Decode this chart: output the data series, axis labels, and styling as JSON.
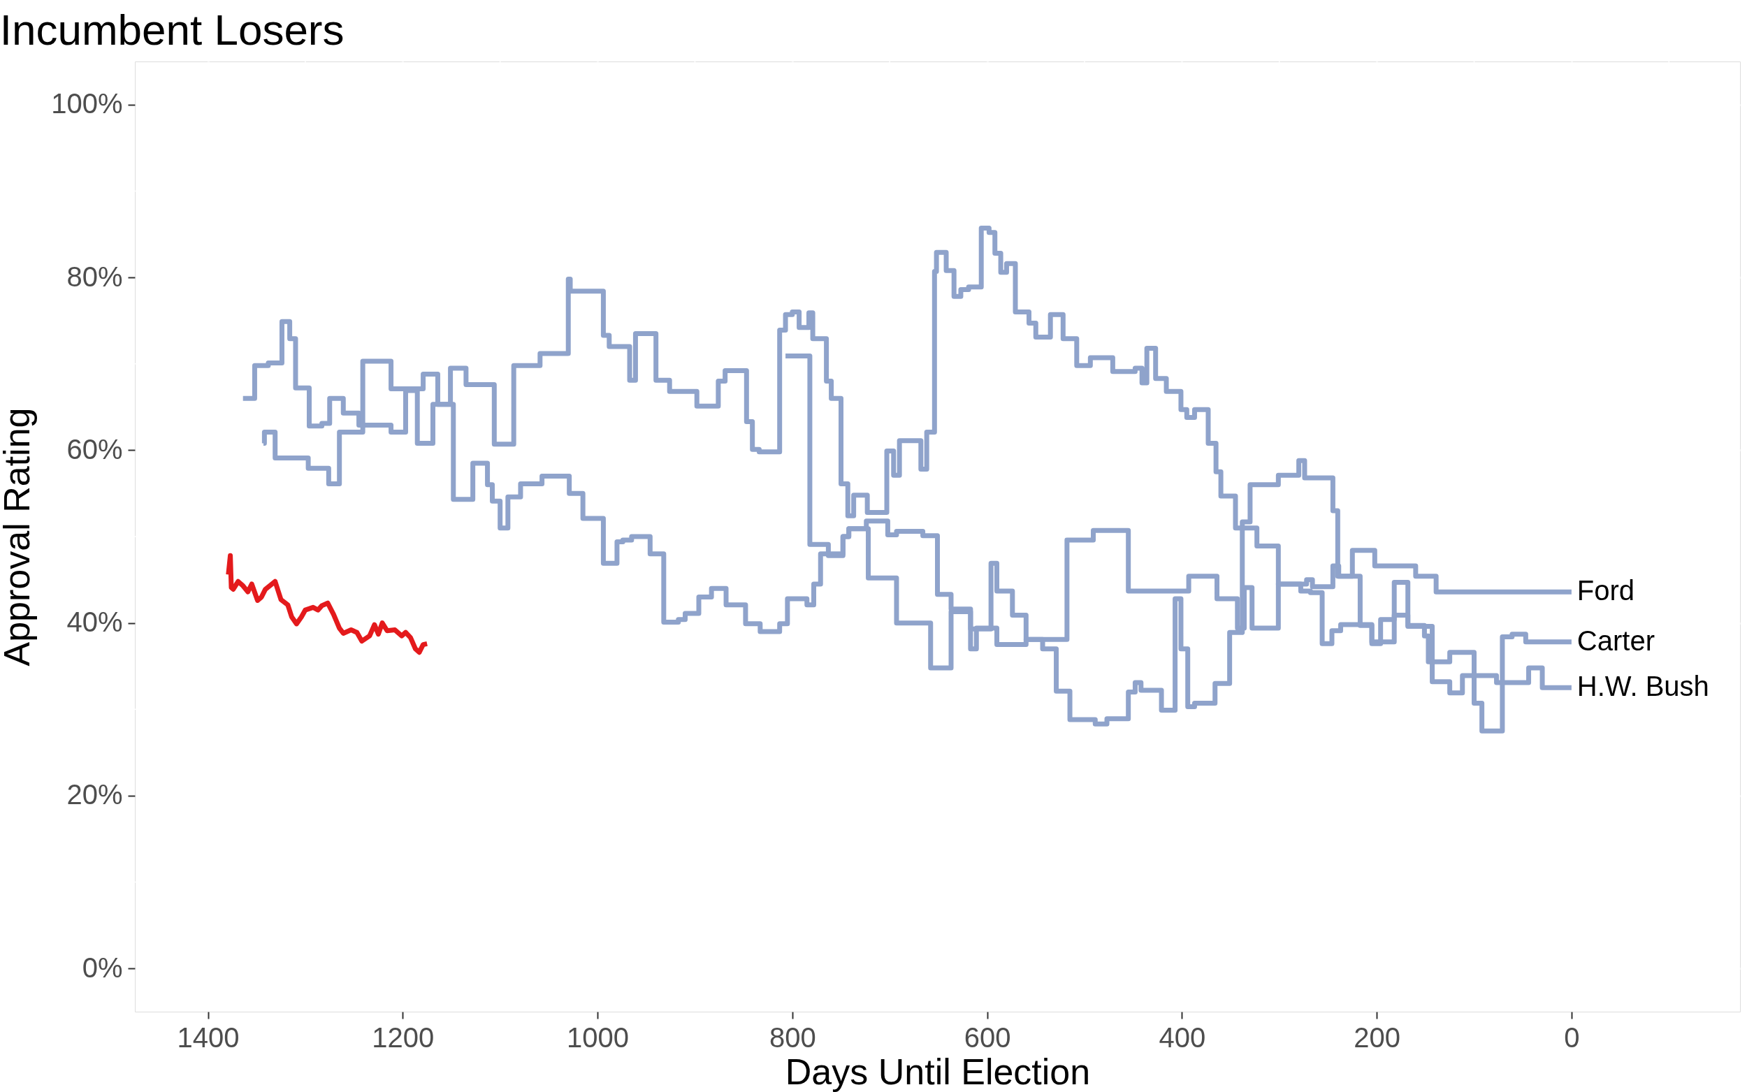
{
  "chart_data": {
    "type": "line",
    "title": "Incumbent Losers",
    "xlabel": "Days Until Election",
    "ylabel": "Approval Rating",
    "xlim": [
      1475,
      -173
    ],
    "xticks": [
      {
        "value": 1400,
        "label": "1400"
      },
      {
        "value": 1200,
        "label": "1200"
      },
      {
        "value": 1000,
        "label": "1000"
      },
      800,
      600,
      400,
      200,
      0
    ],
    "ylim": [
      -5,
      105
    ],
    "yticks": [
      {
        "value": 0,
        "label": "0%"
      },
      {
        "value": 20,
        "label": "20%"
      },
      {
        "value": 40,
        "label": "40%"
      },
      {
        "value": 60,
        "label": "60%"
      },
      {
        "value": 80,
        "label": "80%"
      },
      {
        "value": 100,
        "label": "100%"
      }
    ],
    "grid": true,
    "legend": false,
    "line_style": "solid",
    "marker": "none",
    "series": [
      {
        "name": "Ford",
        "type": "step",
        "color": "#8fa3cb",
        "x": [
          807,
          782,
          763,
          748,
          742,
          722,
          693,
          658,
          637,
          617,
          596,
          590,
          574,
          560,
          518,
          491,
          455,
          393,
          364,
          343,
          336,
          328,
          301,
          272,
          266,
          245,
          239,
          225,
          202,
          160,
          139,
          0
        ],
        "values": [
          70.9,
          49.1,
          47.8,
          50.0,
          50.9,
          45.2,
          40.0,
          34.8,
          41.3,
          39.3,
          46.9,
          43.7,
          40.9,
          38.1,
          49.6,
          50.7,
          43.7,
          45.4,
          42.8,
          39.4,
          44.1,
          39.4,
          44.5,
          45.0,
          44.2,
          46.6,
          45.4,
          48.4,
          46.6,
          45.4,
          43.6,
          43.6
        ]
      },
      {
        "name": "Carter",
        "type": "step",
        "color": "#8fa3cb",
        "x": [
          1364,
          1352,
          1338,
          1324,
          1316,
          1310,
          1296,
          1283,
          1275,
          1261,
          1245,
          1212,
          1197,
          1185,
          1169,
          1148,
          1128,
          1113,
          1108,
          1100,
          1092,
          1079,
          1057,
          1029,
          1015,
          994,
          980,
          974,
          965,
          946,
          932,
          917,
          910,
          896,
          883,
          868,
          848,
          833,
          813,
          805,
          785,
          778,
          771,
          748,
          742,
          724,
          702,
          693,
          666,
          651,
          637,
          617,
          611,
          590,
          560,
          543,
          529,
          515,
          489,
          477,
          455,
          448,
          442,
          421,
          407,
          401,
          394,
          387,
          366,
          351,
          338,
          330,
          301,
          280,
          274,
          245,
          240,
          217,
          205,
          196,
          182,
          168,
          151,
          147,
          125,
          100,
          92,
          71,
          61,
          47,
          0
        ],
        "values": [
          66.0,
          69.8,
          70.1,
          74.9,
          72.9,
          67.2,
          62.8,
          63.1,
          66.0,
          64.3,
          62.9,
          62.1,
          66.9,
          60.8,
          65.3,
          54.3,
          58.5,
          56.0,
          54.1,
          51.0,
          54.6,
          56.1,
          57.0,
          55.0,
          52.1,
          46.9,
          49.4,
          49.6,
          50.0,
          48.0,
          40.1,
          40.4,
          41.1,
          43.0,
          44.0,
          42.1,
          39.9,
          39.0,
          39.9,
          42.8,
          42.1,
          44.5,
          48.0,
          50.0,
          50.9,
          51.8,
          50.2,
          50.6,
          50.1,
          43.3,
          41.6,
          37.0,
          39.4,
          37.5,
          38.1,
          37.0,
          32.1,
          28.8,
          28.3,
          28.9,
          32.0,
          33.1,
          32.2,
          29.9,
          42.8,
          37.0,
          30.3,
          30.7,
          33.0,
          38.9,
          51.7,
          56.0,
          57.1,
          58.8,
          56.8,
          53.0,
          45.4,
          39.7,
          37.6,
          40.4,
          40.9,
          39.7,
          38.5,
          35.5,
          36.6,
          30.7,
          27.5,
          38.4,
          38.7,
          37.8,
          37.8
        ]
      },
      {
        "name": "H.W. Bush",
        "type": "step",
        "color": "#8fa3cb",
        "x": [
          1343,
          1342,
          1331,
          1297,
          1276,
          1265,
          1241,
          1212,
          1179,
          1164,
          1151,
          1135,
          1106,
          1086,
          1059,
          1030,
          1028,
          994,
          988,
          967,
          961,
          940,
          926,
          898,
          876,
          869,
          847,
          841,
          834,
          813,
          807,
          800,
          793,
          783,
          779,
          765,
          760,
          750,
          743,
          737,
          723,
          703,
          696,
          690,
          668,
          662,
          654,
          652,
          642,
          634,
          627,
          619,
          606,
          598,
          592,
          586,
          580,
          571,
          557,
          550,
          535,
          522,
          508,
          494,
          471,
          448,
          441,
          436,
          427,
          416,
          401,
          395,
          387,
          373,
          365,
          360,
          345,
          323,
          301,
          278,
          268,
          256,
          246,
          237,
          205,
          182,
          168,
          143,
          125,
          112,
          77,
          44,
          30,
          0
        ],
        "values": [
          60.8,
          62.1,
          59.1,
          57.9,
          56.1,
          62.1,
          70.3,
          67.1,
          68.8,
          65.3,
          69.5,
          67.6,
          60.7,
          69.8,
          71.2,
          79.8,
          78.4,
          73.3,
          72.0,
          68.1,
          73.5,
          68.1,
          66.8,
          65.1,
          68.0,
          69.2,
          63.3,
          60.1,
          59.8,
          73.9,
          75.7,
          76.0,
          74.2,
          75.9,
          72.9,
          68.0,
          66.0,
          56.1,
          52.4,
          54.8,
          52.8,
          59.9,
          57.1,
          61.1,
          57.8,
          62.1,
          80.7,
          82.9,
          80.8,
          77.8,
          78.6,
          78.9,
          85.7,
          85.2,
          82.8,
          80.6,
          81.6,
          76.0,
          74.7,
          73.1,
          75.7,
          72.9,
          69.8,
          70.7,
          69.1,
          69.5,
          67.8,
          71.8,
          68.3,
          66.8,
          64.7,
          63.8,
          64.7,
          60.8,
          57.5,
          54.7,
          51.0,
          48.9,
          44.5,
          43.7,
          43.5,
          37.6,
          39.1,
          39.8,
          37.8,
          44.7,
          39.6,
          33.2,
          31.9,
          33.9,
          33.1,
          34.8,
          32.5,
          32.5
        ]
      },
      {
        "color": "#e41a1c",
        "x": [
          1379,
          1377,
          1376,
          1374,
          1369,
          1364,
          1359,
          1355,
          1349,
          1345,
          1341,
          1331,
          1325,
          1318,
          1314,
          1309,
          1304,
          1300,
          1292,
          1287,
          1283,
          1277,
          1271,
          1265,
          1261,
          1253,
          1247,
          1242,
          1234,
          1229,
          1225,
          1221,
          1216,
          1208,
          1201,
          1197,
          1192,
          1187,
          1183,
          1179,
          1175
        ],
        "values": [
          45.6,
          47.8,
          44.1,
          43.9,
          44.8,
          44.3,
          43.6,
          44.5,
          42.6,
          43.0,
          43.9,
          44.8,
          42.7,
          42.1,
          40.7,
          39.9,
          40.7,
          41.5,
          41.8,
          41.5,
          42.0,
          42.3,
          41.0,
          39.4,
          38.8,
          39.2,
          38.9,
          37.9,
          38.5,
          39.8,
          38.7,
          40.0,
          39.1,
          39.2,
          38.5,
          38.9,
          38.3,
          37.0,
          36.6,
          37.5,
          37.6
        ]
      }
    ]
  }
}
